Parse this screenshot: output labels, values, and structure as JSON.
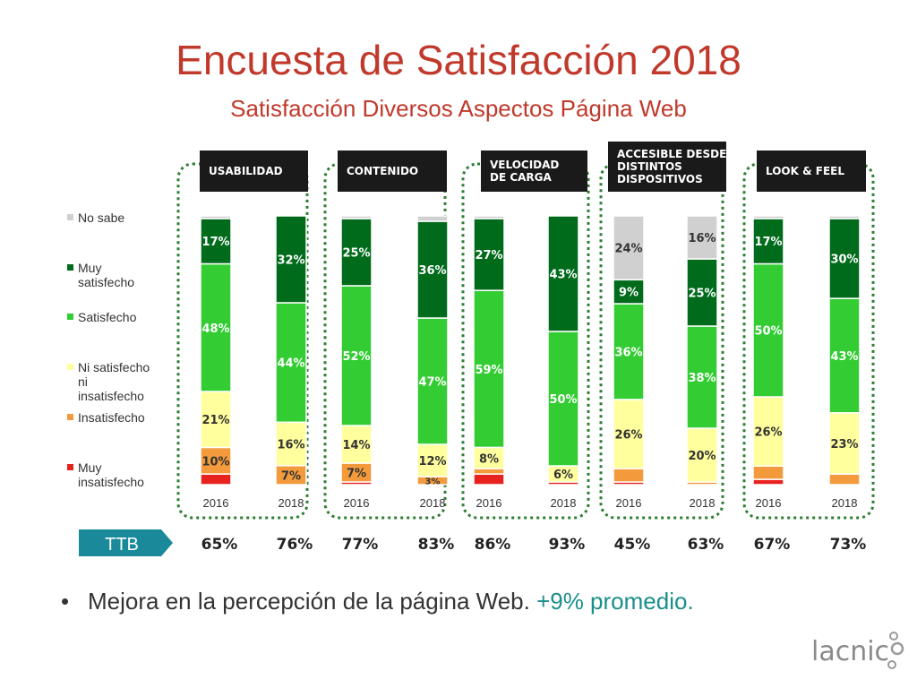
{
  "header": {
    "title": "Encuesta de Satisfacción 2018",
    "subtitle": "Satisfacción Diversos Aspectos Página Web"
  },
  "chart_data": {
    "type": "bar",
    "stacked": true,
    "normalized": "percent",
    "legend_position": "left",
    "groups": [
      {
        "label": "USABILIDAD",
        "years": [
          "2016",
          "2018"
        ]
      },
      {
        "label": "CONTENIDO",
        "years": [
          "2016",
          "2018"
        ]
      },
      {
        "label": "VELOCIDAD DE CARGA",
        "years": [
          "2016",
          "2018"
        ]
      },
      {
        "label": "ACCESIBLE DESDE DISTINTOS DISPOSITIVOS",
        "years": [
          "2016",
          "2018"
        ]
      },
      {
        "label": "LOOK & FEEL",
        "years": [
          "2016",
          "2018"
        ]
      }
    ],
    "series": [
      {
        "name": "Muy insatisfecho",
        "color": "#e8231f",
        "values": [
          4,
          0,
          1,
          0,
          4,
          1,
          1,
          0,
          2,
          0
        ],
        "labels": [
          "",
          "",
          "",
          "",
          "",
          "",
          "",
          "",
          "",
          ""
        ]
      },
      {
        "name": "Insatisfecho",
        "color": "#f39a3c",
        "values": [
          10,
          7,
          7,
          3,
          2,
          0,
          5,
          1,
          5,
          4
        ],
        "labels": [
          "10%",
          "7%",
          "7%",
          "3%",
          "",
          "",
          "",
          "",
          "",
          ""
        ]
      },
      {
        "name": "Ni satisfecho ni insatisfecho",
        "color": "#ffff9e",
        "values": [
          21,
          16,
          14,
          12,
          8,
          6,
          26,
          20,
          26,
          23
        ],
        "labels": [
          "21%",
          "16%",
          "14%",
          "12%",
          "8%",
          "6%",
          "26%",
          "20%",
          "26%",
          "23%"
        ]
      },
      {
        "name": "Satisfecho",
        "color": "#33cc33",
        "values": [
          48,
          44,
          52,
          47,
          59,
          50,
          36,
          38,
          50,
          43
        ],
        "labels": [
          "48%",
          "44%",
          "52%",
          "47%",
          "59%",
          "50%",
          "36%",
          "38%",
          "50%",
          "43%"
        ]
      },
      {
        "name": "Muy satisfecho",
        "color": "#006b1b",
        "values": [
          17,
          32,
          25,
          36,
          27,
          43,
          9,
          25,
          17,
          30
        ],
        "labels": [
          "17%",
          "32%",
          "25%",
          "36%",
          "27%",
          "43%",
          "9%",
          "25%",
          "17%",
          "30%"
        ]
      },
      {
        "name": "No sabe",
        "color": "#d0d0d0",
        "values": [
          1,
          0,
          1,
          2,
          1,
          0,
          24,
          16,
          1,
          1
        ],
        "labels": [
          "",
          "",
          "",
          "",
          "",
          "",
          "24%",
          "16%",
          "",
          ""
        ]
      }
    ],
    "legend": [
      "No sabe",
      "Muy satisfecho",
      "Satisfecho",
      "Ni satisfecho ni insatisfecho",
      "Insatisfecho",
      "Muy insatisfecho"
    ],
    "ttb": {
      "label": "TTB",
      "values": [
        "65%",
        "76%",
        "77%",
        "83%",
        "86%",
        "93%",
        "45%",
        "63%",
        "67%",
        "73%"
      ]
    }
  },
  "bullet": {
    "text": "Mejora en la percepción de la página Web. ",
    "highlight": "+9% promedio."
  },
  "logo": {
    "text": "lacnic"
  }
}
